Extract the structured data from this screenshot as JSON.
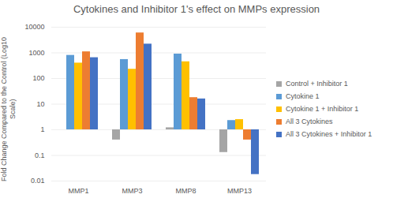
{
  "chart_data": {
    "type": "bar",
    "title": "Cytokines and Inhibitor 1's effect on MMPs expression",
    "y_label": "Fold Change Compared to the Control (Log10 Scale)",
    "categories": [
      "MMP1",
      "MMP3",
      "MMP8",
      "MMP13"
    ],
    "series": [
      {
        "name": "Control + Inhibitor 1",
        "color": "#a5a5a5",
        "values": [
          1,
          0.4,
          1.2,
          0.13
        ]
      },
      {
        "name": "Cytokine 1",
        "color": "#5b9bd5",
        "values": [
          800,
          550,
          900,
          2.3
        ]
      },
      {
        "name": "Cytokine 1 + Inhibitor 1",
        "color": "#ffc000",
        "values": [
          400,
          230,
          450,
          2.5
        ]
      },
      {
        "name": "All 3 Cytokines",
        "color": "#ed7d31",
        "values": [
          1100,
          6000,
          18,
          0.4
        ]
      },
      {
        "name": "All 3 Cytokines + Inhibitor 1",
        "color": "#4472c4",
        "values": [
          650,
          2200,
          16,
          0.018
        ]
      }
    ],
    "log": "y",
    "ylim": [
      0.01,
      10000
    ],
    "yticks": [
      0.01,
      0.1,
      1,
      10,
      100,
      1000,
      10000
    ],
    "grid": true,
    "legend": "right"
  }
}
